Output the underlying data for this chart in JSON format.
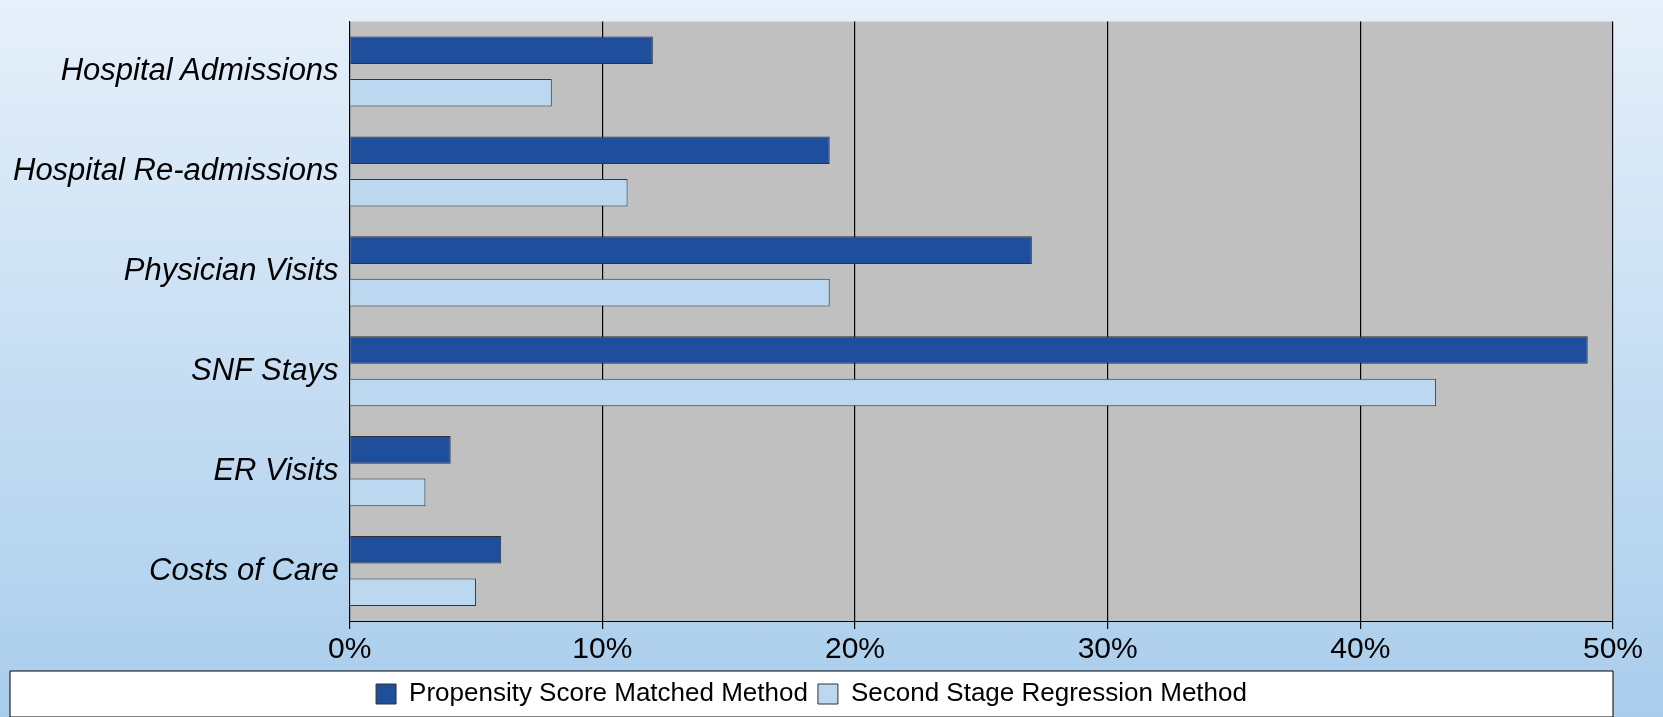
{
  "chart_data": {
    "type": "bar",
    "orientation": "horizontal",
    "categories": [
      "Hospital Admissions",
      "Hospital Re-admissions",
      "Physician Visits",
      "SNF Stays",
      "ER Visits",
      "Costs of Care"
    ],
    "series": [
      {
        "name": "Propensity Score Matched Method",
        "color": "#1f4e9c",
        "values": [
          12,
          19,
          27,
          49,
          4,
          6
        ]
      },
      {
        "name": "Second Stage Regression Method",
        "color": "#bcd8f0",
        "values": [
          8,
          11,
          19,
          43,
          3,
          5
        ]
      }
    ],
    "xlim": [
      0,
      50
    ],
    "xticks": [
      {
        "value": 0,
        "label": "0%"
      },
      {
        "value": 10,
        "label": "10%"
      },
      {
        "value": 20,
        "label": "20%"
      },
      {
        "value": 30,
        "label": "30%"
      },
      {
        "value": 40,
        "label": "40%"
      },
      {
        "value": 50,
        "label": "50%"
      }
    ],
    "grid": "x",
    "legend": "bottom"
  }
}
